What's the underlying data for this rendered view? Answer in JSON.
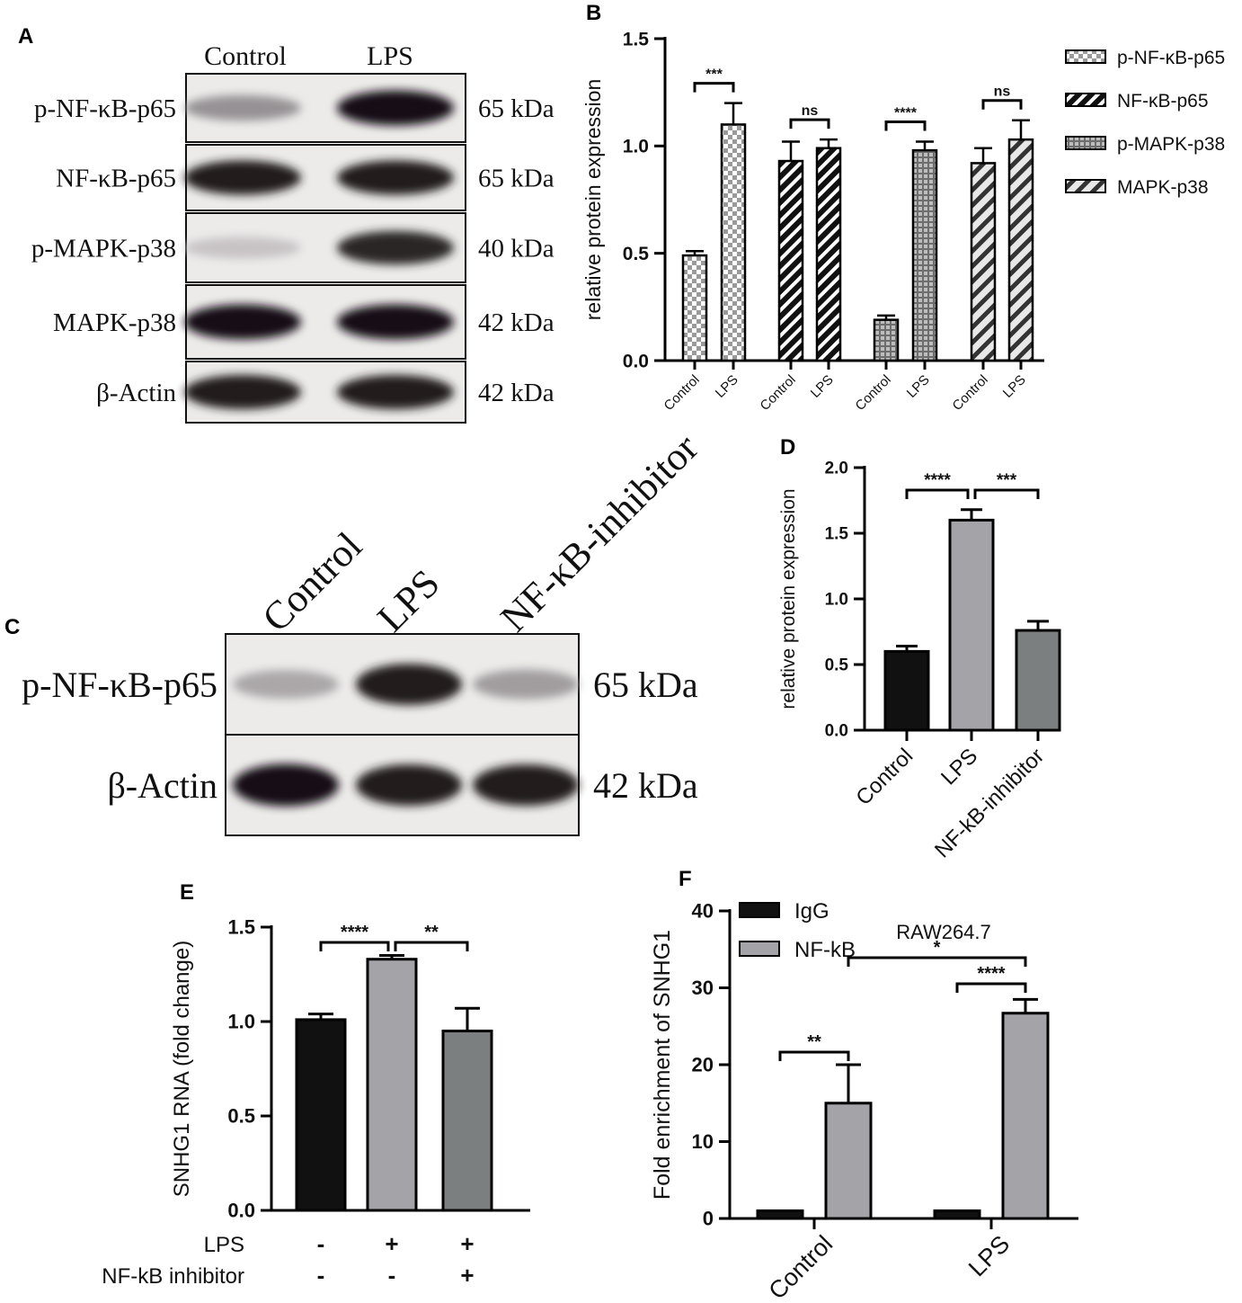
{
  "figure": {
    "panel_letters": [
      "A",
      "B",
      "C",
      "D",
      "E",
      "F"
    ]
  },
  "blot_a": {
    "lanes": [
      "Control",
      "LPS"
    ],
    "rows": [
      {
        "protein": "p-NF-κB-p65",
        "size": "65",
        "unit": "kDa",
        "band_intensity": [
          0.35,
          0.95
        ]
      },
      {
        "protein": "NF-κB-p65",
        "size": "65",
        "unit": "kDa",
        "band_intensity": [
          0.9,
          0.9
        ]
      },
      {
        "protein": "p-MAPK-p38",
        "size": "40",
        "unit": "kDa",
        "band_intensity": [
          0.12,
          0.85
        ]
      },
      {
        "protein": "MAPK-p38",
        "size": "42",
        "unit": "kDa",
        "band_intensity": [
          0.95,
          0.95
        ]
      },
      {
        "protein": "β-Actin",
        "size": "42",
        "unit": "kDa",
        "band_intensity": [
          0.9,
          0.9
        ]
      }
    ]
  },
  "blot_c": {
    "lanes": [
      "Control",
      "LPS",
      "NF-κB-inhibitor"
    ],
    "rows": [
      {
        "protein": "p-NF-κB-p65",
        "size": "65",
        "unit": "kDa",
        "band_intensity": [
          0.25,
          0.9,
          0.3
        ]
      },
      {
        "protein": "β-Actin",
        "size": "42",
        "unit": "kDa",
        "band_intensity": [
          0.95,
          0.9,
          0.9
        ]
      }
    ]
  },
  "chart_data": [
    {
      "panel": "B",
      "type": "bar",
      "ylabel": "relative protein expression",
      "ylim": [
        0,
        1.5
      ],
      "yticks": [
        "0.0",
        "0.5",
        "1.0",
        "1.5"
      ],
      "legend_position": "right",
      "series": [
        {
          "name": "p-NF-κB-p65",
          "pattern": "checker",
          "categories": [
            "Control",
            "LPS"
          ],
          "values": [
            0.49,
            1.1
          ],
          "errors": [
            0.02,
            0.1
          ]
        },
        {
          "name": "NF-κB-p65",
          "pattern": "diag-dark",
          "categories": [
            "Control",
            "LPS"
          ],
          "values": [
            0.93,
            0.99
          ],
          "errors": [
            0.09,
            0.04
          ]
        },
        {
          "name": "p-MAPK-p38",
          "pattern": "grid",
          "categories": [
            "Control",
            "LPS"
          ],
          "values": [
            0.19,
            0.98
          ],
          "errors": [
            0.02,
            0.04
          ]
        },
        {
          "name": "MAPK-p38",
          "pattern": "diag-light",
          "categories": [
            "Control",
            "LPS"
          ],
          "values": [
            0.92,
            1.03
          ],
          "errors": [
            0.07,
            0.09
          ]
        }
      ],
      "significance": [
        "***",
        "ns",
        "****",
        "ns"
      ]
    },
    {
      "panel": "D",
      "type": "bar",
      "ylabel": "relative protein expression",
      "ylim": [
        0,
        2.0
      ],
      "yticks": [
        "0.0",
        "0.5",
        "1.0",
        "1.5",
        "2.0"
      ],
      "categories": [
        "Control",
        "LPS",
        "NF-kB-inhibitor"
      ],
      "values": [
        0.6,
        1.6,
        0.76
      ],
      "errors": [
        0.04,
        0.08,
        0.07
      ],
      "colors": [
        "#111111",
        "#a3a3a8",
        "#7c7f7f"
      ],
      "significance": [
        {
          "between": [
            0,
            1
          ],
          "label": "****"
        },
        {
          "between": [
            1,
            2
          ],
          "label": "***"
        }
      ]
    },
    {
      "panel": "E",
      "type": "bar",
      "ylabel": "SNHG1 RNA (fold change)",
      "ylim": [
        0,
        1.5
      ],
      "yticks": [
        "0.0",
        "0.5",
        "1.0",
        "1.5"
      ],
      "values": [
        1.01,
        1.33,
        0.95
      ],
      "errors": [
        0.03,
        0.02,
        0.12
      ],
      "colors": [
        "#111111",
        "#a3a3a8",
        "#7c7f7f"
      ],
      "condition_rows": [
        {
          "label": "LPS",
          "marks": [
            "-",
            "+",
            "+"
          ]
        },
        {
          "label": "NF-kB inhibitor",
          "marks": [
            "-",
            "-",
            "+"
          ]
        }
      ],
      "significance": [
        {
          "between": [
            0,
            1
          ],
          "label": "****"
        },
        {
          "between": [
            1,
            2
          ],
          "label": "**"
        }
      ]
    },
    {
      "panel": "F",
      "type": "bar",
      "title": "RAW264.7",
      "ylabel": "Fold enrichment of SNHG1",
      "ylim": [
        0,
        40
      ],
      "yticks": [
        "0",
        "10",
        "20",
        "30",
        "40"
      ],
      "categories": [
        "Control",
        "LPS"
      ],
      "legend_position": "top-left",
      "series": [
        {
          "name": "IgG",
          "color": "#111111",
          "values": [
            1.0,
            1.0
          ],
          "errors": [
            0,
            0
          ]
        },
        {
          "name": "NF-kB",
          "color": "#a3a3a8",
          "values": [
            15.0,
            26.7
          ],
          "errors": [
            5.0,
            1.8
          ]
        }
      ],
      "significance": [
        {
          "between": [
            "Control-IgG",
            "Control-NF-kB"
          ],
          "label": "**"
        },
        {
          "between": [
            "LPS-IgG",
            "LPS-NF-kB"
          ],
          "label": "****"
        },
        {
          "between": [
            "Control-NF-kB",
            "LPS-NF-kB"
          ],
          "label": "*"
        }
      ]
    }
  ]
}
